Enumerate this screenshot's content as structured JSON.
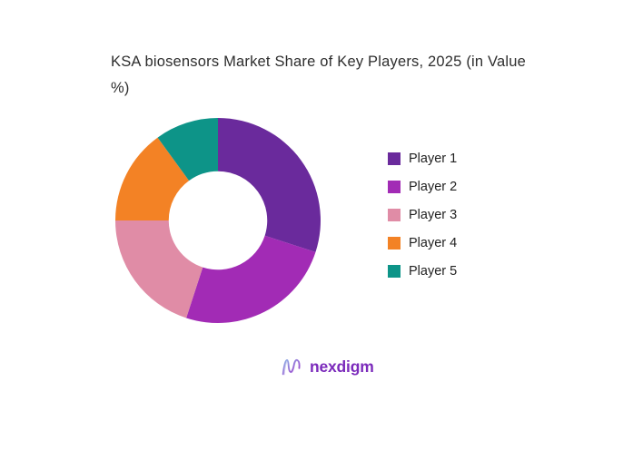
{
  "chart_data": {
    "type": "pie",
    "subtype": "donut",
    "title": "KSA biosensors Market Share of Key Players, 2025 (in Value %)",
    "categories": [
      "Player 1",
      "Player 2",
      "Player 3",
      "Player 4",
      "Player 5"
    ],
    "values": [
      30,
      25,
      20,
      15,
      10
    ],
    "unit": "%",
    "colors": [
      "#6a2a9c",
      "#a22bb5",
      "#e08ca6",
      "#f38225",
      "#0d9488"
    ],
    "start_angle_deg": 0,
    "direction": "clockwise",
    "inner_radius_ratio": 0.48,
    "legend_position": "right",
    "data_labels": "none",
    "background": "#ffffff",
    "title_color": "#2e2e2e"
  },
  "footer": {
    "logo_text": "nexdigm",
    "logo_icon": "nexdigm-wave-n-icon",
    "logo_text_color": "#7b2abb",
    "logo_gradient_start": "#8fb4e6",
    "logo_gradient_end": "#9c2fc9"
  }
}
